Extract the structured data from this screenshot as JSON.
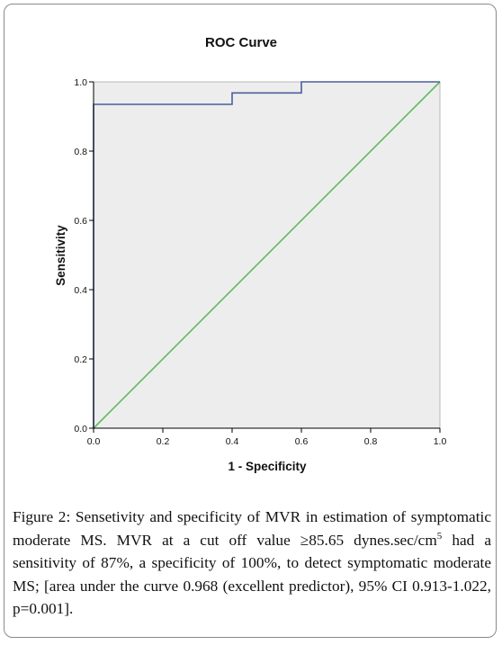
{
  "colors": {
    "plot_bg": "#ededed",
    "roc_line": "#4a5f9e",
    "reference_line": "#5dbd5d",
    "axis": "#000000"
  },
  "chart_data": {
    "type": "line",
    "title": "ROC Curve",
    "xlabel": "1 - Specificity",
    "ylabel": "Sensitivity",
    "xlim": [
      0,
      1
    ],
    "ylim": [
      0,
      1
    ],
    "xticks": [
      "0.0",
      "0.2",
      "0.4",
      "0.6",
      "0.8",
      "1.0"
    ],
    "yticks": [
      "0.0",
      "0.2",
      "0.4",
      "0.6",
      "0.8",
      "1.0"
    ],
    "grid": false,
    "series": [
      {
        "role": "roc",
        "x": [
          0.0,
          0.0,
          0.4,
          0.4,
          0.6,
          0.6,
          1.0
        ],
        "y": [
          0.0,
          0.935,
          0.935,
          0.968,
          0.968,
          1.0,
          1.0
        ]
      },
      {
        "role": "reference",
        "x": [
          0.0,
          1.0
        ],
        "y": [
          0.0,
          1.0
        ]
      }
    ]
  },
  "caption": {
    "label": "Figure 2",
    "text_part1": ": Sensetivity and specificity of MVR in estimation of symptomatic moderate MS. MVR at a cut off value ≥85.65 dynes.sec/cm",
    "superscript": "5",
    "text_part2": " had a sensitivity of 87%, a specificity of 100%, to detect symptomatic moderate MS; [area under the curve 0.968 (excellent predictor), 95% CI 0.913-1.022, p=0.001]."
  }
}
